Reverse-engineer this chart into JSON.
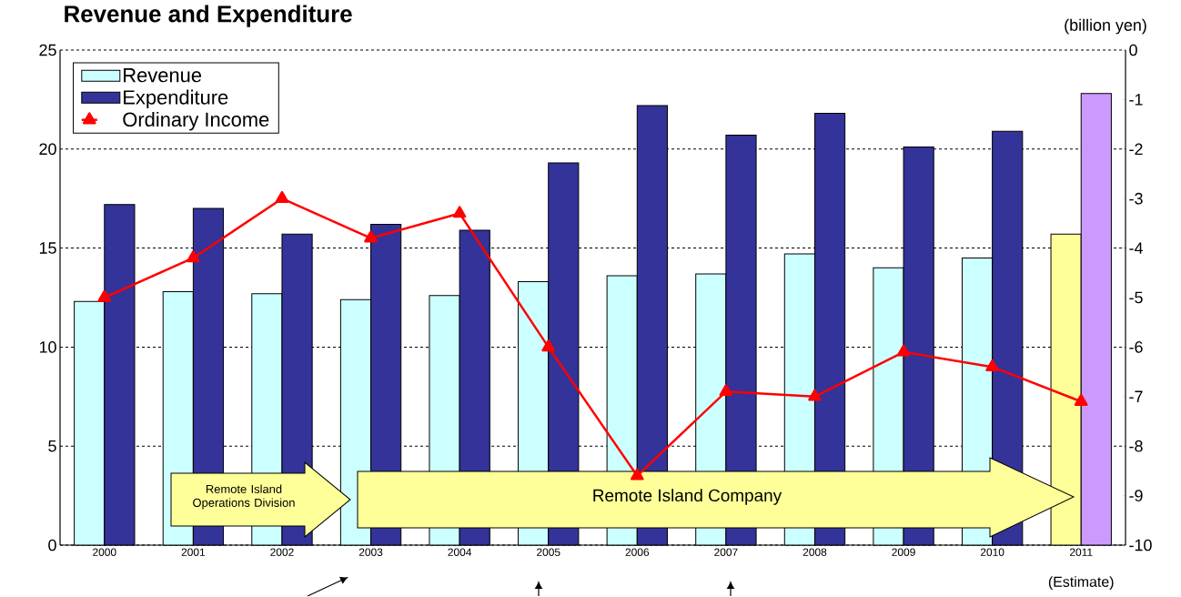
{
  "chart_data": {
    "type": "bar",
    "title": "Revenue and Expenditure",
    "y2label": "(billion yen)",
    "categories": [
      "2000",
      "2001",
      "2002",
      "2003",
      "2004",
      "2005",
      "2006",
      "2007",
      "2008",
      "2009",
      "2010",
      "2011"
    ],
    "series": [
      {
        "name": "Revenue",
        "color": "#ccffff",
        "colors": [
          "#ccffff",
          "#ccffff",
          "#ccffff",
          "#ccffff",
          "#ccffff",
          "#ccffff",
          "#ccffff",
          "#ccffff",
          "#ccffff",
          "#ccffff",
          "#ccffff",
          "#ffff99"
        ],
        "values": [
          12.3,
          12.8,
          12.7,
          12.4,
          12.6,
          13.3,
          13.6,
          13.7,
          14.7,
          14.0,
          14.5,
          15.7
        ]
      },
      {
        "name": "Expenditure",
        "color": "#333399",
        "colors": [
          "#333399",
          "#333399",
          "#333399",
          "#333399",
          "#333399",
          "#333399",
          "#333399",
          "#333399",
          "#333399",
          "#333399",
          "#333399",
          "#cc99ff"
        ],
        "values": [
          17.2,
          17.0,
          15.7,
          16.2,
          15.9,
          19.3,
          22.2,
          20.7,
          21.8,
          20.1,
          20.9,
          22.8
        ]
      },
      {
        "name": "Ordinary Income",
        "type": "line",
        "axis": "y2",
        "color": "#ff0000",
        "marker": "triangle",
        "line_style": "solid",
        "values": [
          -5.0,
          -4.2,
          -3.0,
          -3.8,
          -3.3,
          -6.0,
          -8.6,
          -6.9,
          -7.0,
          -6.1,
          -6.4,
          -7.1
        ]
      }
    ],
    "ylim": [
      0,
      25
    ],
    "yticks": [
      0,
      5,
      10,
      15,
      20,
      25
    ],
    "y2lim": [
      -10,
      0
    ],
    "y2ticks": [
      0,
      -1,
      -2,
      -3,
      -4,
      -5,
      -6,
      -7,
      -8,
      -9,
      -10
    ],
    "grid": "y",
    "legend": "top left",
    "annotations": [
      "(Estimate)",
      "Remote Island Operations Division",
      "Remote Island Company"
    ]
  }
}
